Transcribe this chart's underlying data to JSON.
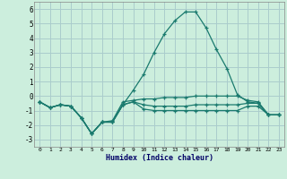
{
  "xlabel": "Humidex (Indice chaleur)",
  "x": [
    0,
    1,
    2,
    3,
    4,
    5,
    6,
    7,
    8,
    9,
    10,
    11,
    12,
    13,
    14,
    15,
    16,
    17,
    18,
    19,
    20,
    21,
    22,
    23
  ],
  "line_main": [
    -0.4,
    -0.8,
    -0.6,
    -0.7,
    -1.5,
    -2.6,
    -1.8,
    -1.8,
    -0.6,
    0.4,
    1.5,
    3.0,
    4.3,
    5.2,
    5.8,
    5.8,
    4.7,
    3.2,
    1.9,
    0.1,
    -0.4,
    -0.5,
    -1.3,
    -1.3
  ],
  "line_flat1": [
    -0.4,
    -0.8,
    -0.6,
    -0.7,
    -1.5,
    -2.6,
    -1.8,
    -1.7,
    -0.4,
    -0.3,
    -0.2,
    -0.2,
    -0.1,
    -0.1,
    -0.1,
    -0.0,
    -0.0,
    0.0,
    0.0,
    0.0,
    -0.3,
    -0.4,
    -1.3,
    -1.3
  ],
  "line_flat2": [
    -0.4,
    -0.8,
    -0.6,
    -0.7,
    -1.5,
    -2.6,
    -1.8,
    -1.8,
    -0.6,
    -0.4,
    -0.6,
    -0.7,
    -0.7,
    -0.7,
    -0.7,
    -0.6,
    -0.6,
    -0.6,
    -0.6,
    -0.6,
    -0.5,
    -0.5,
    -1.3,
    -1.3
  ],
  "line_flat3": [
    -0.4,
    -0.8,
    -0.6,
    -0.7,
    -1.5,
    -2.6,
    -1.8,
    -1.8,
    -0.6,
    -0.4,
    -0.9,
    -1.0,
    -1.0,
    -1.0,
    -1.0,
    -1.0,
    -1.0,
    -1.0,
    -1.0,
    -1.0,
    -0.7,
    -0.7,
    -1.3,
    -1.3
  ],
  "color": "#1a7a6e",
  "bg_color": "#cceedd",
  "grid_color": "#aacccc",
  "ylim": [
    -3.5,
    6.5
  ],
  "xlim": [
    -0.5,
    23.5
  ],
  "yticks": [
    -3,
    -2,
    -1,
    0,
    1,
    2,
    3,
    4,
    5,
    6
  ],
  "xticks": [
    0,
    1,
    2,
    3,
    4,
    5,
    6,
    7,
    8,
    9,
    10,
    11,
    12,
    13,
    14,
    15,
    16,
    17,
    18,
    19,
    20,
    21,
    22,
    23
  ]
}
